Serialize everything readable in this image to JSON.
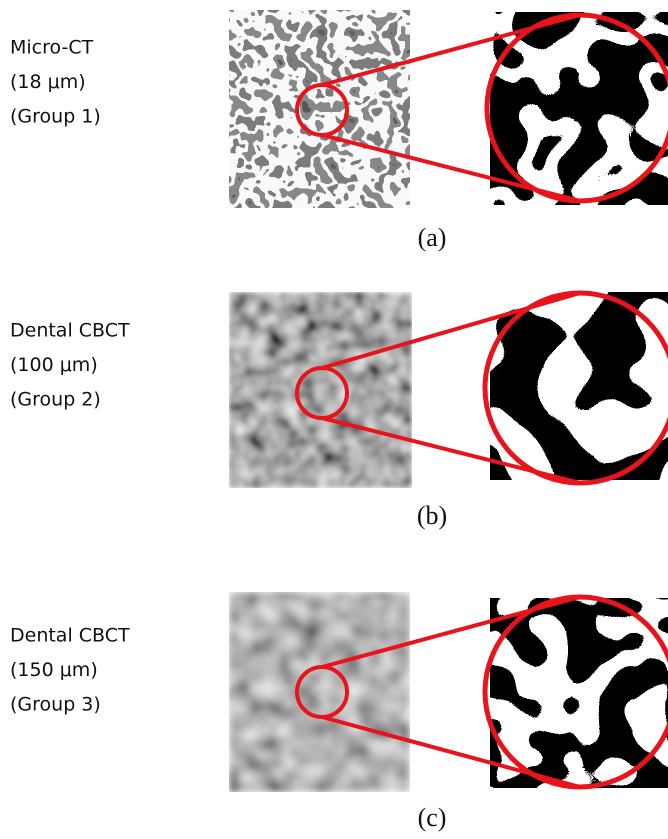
{
  "panels": [
    {
      "label_lines": [
        "Micro-CT",
        "(18 μm)",
        "(Group 1)"
      ],
      "caption": "(a)"
    },
    {
      "label_lines": [
        "Dental CBCT",
        "(100 μm)",
        "(Group 2)"
      ],
      "caption": "(b)"
    },
    {
      "label_lines": [
        "Dental CBCT",
        "(150 μm)",
        "(Group 3)"
      ],
      "caption": "(c)"
    }
  ]
}
